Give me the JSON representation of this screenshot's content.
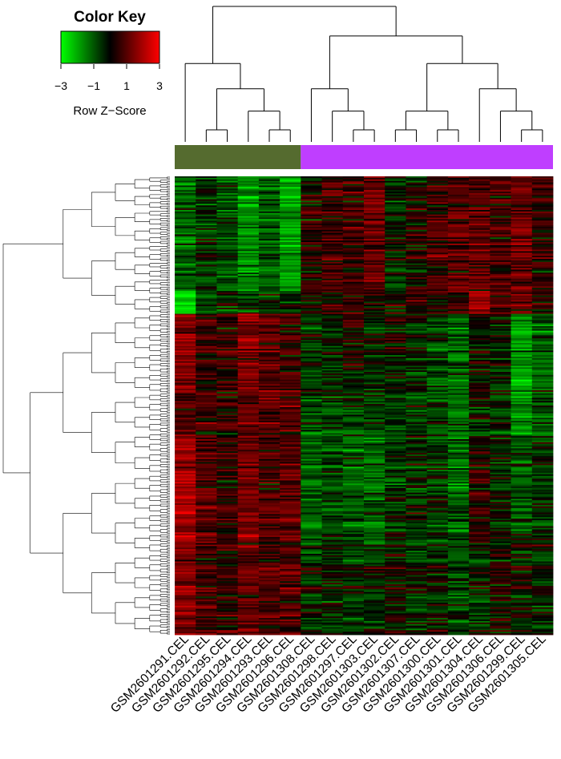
{
  "chart_data": {
    "type": "heatmap",
    "color_key": {
      "title": "Color Key",
      "ticks": [
        "−3",
        "−1",
        "1",
        "3"
      ],
      "label": "Row Z−Score",
      "low_color": "#00ff00",
      "mid_color": "#000000",
      "high_color": "#ff0000",
      "range": [
        -3,
        3
      ]
    },
    "columns": [
      "GSM2601291.CEL",
      "GSM2601292.CEL",
      "GSM2601295.CEL",
      "GSM2601294.CEL",
      "GSM2601293.CEL",
      "GSM2601296.CEL",
      "GSM2601308.CEL",
      "GSM2601298.CEL",
      "GSM2601297.CEL",
      "GSM2601303.CEL",
      "GSM2601302.CEL",
      "GSM2601307.CEL",
      "GSM2601300.CEL",
      "GSM2601301.CEL",
      "GSM2601304.CEL",
      "GSM2601306.CEL",
      "GSM2601299.CEL",
      "GSM2601305.CEL"
    ],
    "column_groups": [
      {
        "color": "#556b2f",
        "count": 6
      },
      {
        "color": "#bf3eff",
        "count": 12
      }
    ],
    "row_count": 300,
    "row_blocks": [
      {
        "rows": 75,
        "means": [
          -0.9,
          -0.3,
          -0.7,
          -1.5,
          -0.8,
          -1.7,
          0.3,
          0.6,
          0.6,
          1.0,
          -0.2,
          0.1,
          0.6,
          0.8,
          0.9,
          0.6,
          1.0,
          0.3
        ]
      },
      {
        "rows": 15,
        "means": [
          -2.8,
          -0.5,
          -0.4,
          -0.6,
          -0.4,
          -0.3,
          0.0,
          0.1,
          0.4,
          0.3,
          0.1,
          0.2,
          0.2,
          0.2,
          1.6,
          0.5,
          0.9,
          0.4
        ]
      },
      {
        "rows": 50,
        "means": [
          1.2,
          0.4,
          0.5,
          1.2,
          0.8,
          0.5,
          -0.4,
          -0.2,
          0.1,
          -0.2,
          0.0,
          -0.3,
          -0.6,
          -1.0,
          -0.1,
          -0.2,
          -1.6,
          -0.9
        ]
      },
      {
        "rows": 30,
        "means": [
          0.7,
          0.5,
          0.3,
          0.9,
          0.8,
          0.9,
          -0.4,
          -0.5,
          -0.5,
          -0.4,
          -0.3,
          -0.4,
          -0.6,
          -0.9,
          -0.3,
          -0.4,
          -1.3,
          -0.6
        ]
      },
      {
        "rows": 70,
        "means": [
          1.7,
          0.7,
          0.4,
          1.1,
          0.6,
          0.8,
          -0.9,
          -0.6,
          -0.8,
          -0.9,
          -0.4,
          -0.3,
          -0.5,
          -0.9,
          0.4,
          -0.2,
          -0.6,
          -0.4
        ]
      },
      {
        "rows": 60,
        "means": [
          1.3,
          0.6,
          0.5,
          0.9,
          0.7,
          0.7,
          -0.3,
          -0.2,
          -0.3,
          -0.2,
          0.0,
          -0.3,
          -0.2,
          -0.5,
          -0.3,
          0.1,
          0.0,
          -0.2
        ]
      }
    ],
    "column_dendrogram": "((GSM2601291.CEL,((GSM2601292.CEL,GSM2601295.CEL),(GSM2601294.CEL,(GSM2601293.CEL,GSM2601296.CEL)))),((GSM2601308.CEL,(GSM2601298.CEL,(GSM2601297.CEL,GSM2601303.CEL))),(((GSM2601302.CEL,GSM2601307.CEL),(GSM2601300.CEL,GSM2601301.CEL)),(GSM2601304.CEL,(GSM2601306.CEL,(GSM2601299.CEL,GSM2601305.CEL))))))"
  }
}
